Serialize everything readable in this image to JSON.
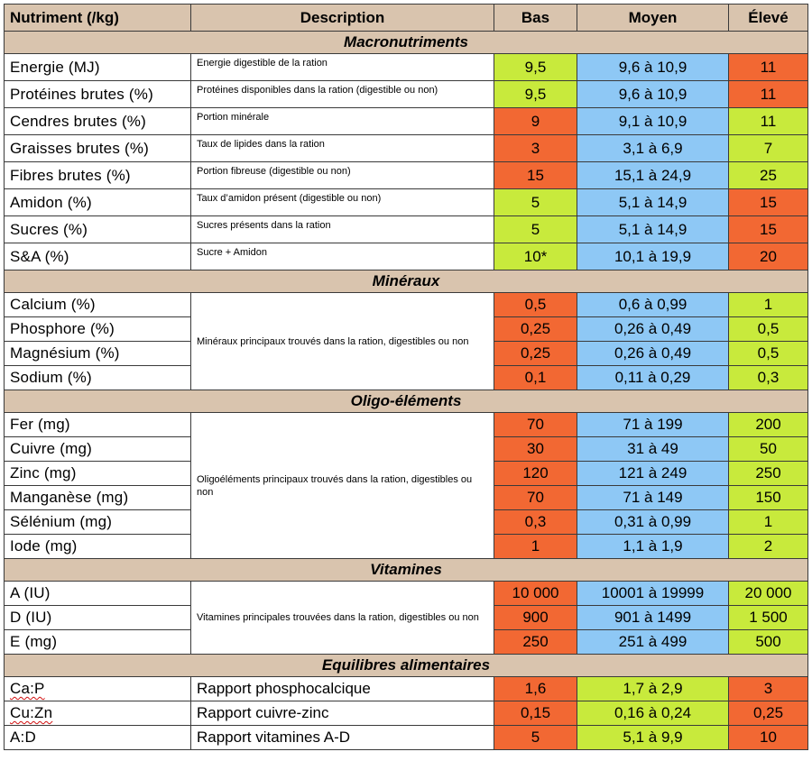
{
  "headers": [
    "Nutriment (/kg)",
    "Description",
    "Bas",
    "Moyen",
    "Élevé"
  ],
  "colors": {
    "header_bg": "#d9c4ae",
    "low": "#f26833",
    "ok": "#c8ea3c",
    "mid": "#8ec8f5"
  },
  "sections": [
    {
      "title": "Macronutriments",
      "rows": [
        {
          "name": "Energie (MJ)",
          "desc": "Energie digestible de la ration",
          "bas": "9,5",
          "moyen": "9,6 à 10,9",
          "eleve": "11",
          "bas_color": "green",
          "moyen_color": "blue",
          "eleve_color": "red"
        },
        {
          "name": "Protéines brutes (%)",
          "desc": "Protéines disponibles dans la ration (digestible ou non)",
          "bas": "9,5",
          "moyen": "9,6 à 10,9",
          "eleve": "11",
          "bas_color": "green",
          "moyen_color": "blue",
          "eleve_color": "red"
        },
        {
          "name": "Cendres brutes (%)",
          "desc": "Portion minérale",
          "bas": "9",
          "moyen": "9,1 à 10,9",
          "eleve": "11",
          "bas_color": "red",
          "moyen_color": "blue",
          "eleve_color": "green"
        },
        {
          "name": "Graisses brutes (%)",
          "desc": "Taux de lipides dans la ration",
          "bas": "3",
          "moyen": "3,1 à 6,9",
          "eleve": "7",
          "bas_color": "red",
          "moyen_color": "blue",
          "eleve_color": "green"
        },
        {
          "name": "Fibres brutes (%)",
          "desc": "Portion fibreuse (digestible ou non)",
          "bas": "15",
          "moyen": "15,1 à 24,9",
          "eleve": "25",
          "bas_color": "red",
          "moyen_color": "blue",
          "eleve_color": "green"
        },
        {
          "name": "Amidon (%)",
          "desc": "Taux d’amidon présent (digestible ou non)",
          "bas": "5",
          "moyen": "5,1 à 14,9",
          "eleve": "15",
          "bas_color": "green",
          "moyen_color": "blue",
          "eleve_color": "red"
        },
        {
          "name": "Sucres (%)",
          "desc": "Sucres présents dans la ration",
          "bas": "5",
          "moyen": "5,1 à 14,9",
          "eleve": "15",
          "bas_color": "green",
          "moyen_color": "blue",
          "eleve_color": "red"
        },
        {
          "name": "S&A (%)",
          "desc": "Sucre + Amidon",
          "bas": "10*",
          "moyen": "10,1 à 19,9",
          "eleve": "20",
          "bas_color": "green",
          "moyen_color": "blue",
          "eleve_color": "red"
        }
      ]
    },
    {
      "title": "Minéraux",
      "shared_desc": "Minéraux principaux trouvés dans la ration, digestibles ou non",
      "rows": [
        {
          "name": "Calcium (%)",
          "bas": "0,5",
          "moyen": "0,6 à 0,99",
          "eleve": "1",
          "bas_color": "red",
          "moyen_color": "blue",
          "eleve_color": "green"
        },
        {
          "name": "Phosphore (%)",
          "bas": "0,25",
          "moyen": "0,26 à 0,49",
          "eleve": "0,5",
          "bas_color": "red",
          "moyen_color": "blue",
          "eleve_color": "green"
        },
        {
          "name": "Magnésium (%)",
          "bas": "0,25",
          "moyen": "0,26 à 0,49",
          "eleve": "0,5",
          "bas_color": "red",
          "moyen_color": "blue",
          "eleve_color": "green"
        },
        {
          "name": "Sodium (%)",
          "bas": "0,1",
          "moyen": "0,11 à 0,29",
          "eleve": "0,3",
          "bas_color": "red",
          "moyen_color": "blue",
          "eleve_color": "green"
        }
      ]
    },
    {
      "title": "Oligo-éléments",
      "shared_desc": "Oligoéléments principaux trouvés dans la ration, digestibles ou non",
      "rows": [
        {
          "name": "Fer (mg)",
          "bas": "70",
          "moyen": "71 à 199",
          "eleve": "200",
          "bas_color": "red",
          "moyen_color": "blue",
          "eleve_color": "green"
        },
        {
          "name": "Cuivre (mg)",
          "bas": "30",
          "moyen": "31 à 49",
          "eleve": "50",
          "bas_color": "red",
          "moyen_color": "blue",
          "eleve_color": "green"
        },
        {
          "name": "Zinc (mg)",
          "bas": "120",
          "moyen": "121 à 249",
          "eleve": "250",
          "bas_color": "red",
          "moyen_color": "blue",
          "eleve_color": "green"
        },
        {
          "name": "Manganèse (mg)",
          "bas": "70",
          "moyen": "71 à 149",
          "eleve": "150",
          "bas_color": "red",
          "moyen_color": "blue",
          "eleve_color": "green"
        },
        {
          "name": "Sélénium (mg)",
          "bas": "0,3",
          "moyen": "0,31 à 0,99",
          "eleve": "1",
          "bas_color": "red",
          "moyen_color": "blue",
          "eleve_color": "green"
        },
        {
          "name": "Iode (mg)",
          "bas": "1",
          "moyen": "1,1 à 1,9",
          "eleve": "2",
          "bas_color": "red",
          "moyen_color": "blue",
          "eleve_color": "green"
        }
      ]
    },
    {
      "title": "Vitamines",
      "shared_desc": "Vitamines principales trouvées dans la ration, digestibles ou non",
      "rows": [
        {
          "name": "A (IU)",
          "bas": "10 000",
          "moyen": "10001 à 19999",
          "eleve": "20 000",
          "bas_color": "red",
          "moyen_color": "blue",
          "eleve_color": "green"
        },
        {
          "name": "D (IU)",
          "bas": "900",
          "moyen": "901 à 1499",
          "eleve": "1 500",
          "bas_color": "red",
          "moyen_color": "blue",
          "eleve_color": "green"
        },
        {
          "name": "E (mg)",
          "bas": "250",
          "moyen": "251 à 499",
          "eleve": "500",
          "bas_color": "red",
          "moyen_color": "blue",
          "eleve_color": "green"
        }
      ]
    },
    {
      "title": "Equilibres alimentaires",
      "rows": [
        {
          "name": "Ca:P",
          "desc": "Rapport phosphocalcique",
          "bas": "1,6",
          "moyen": "1,7 à 2,9",
          "eleve": "3",
          "bas_color": "red",
          "moyen_color": "green",
          "eleve_color": "red"
        },
        {
          "name": "Cu:Zn",
          "desc": "Rapport cuivre-zinc",
          "bas": "0,15",
          "moyen": "0,16 à 0,24",
          "eleve": "0,25",
          "bas_color": "red",
          "moyen_color": "green",
          "eleve_color": "red"
        },
        {
          "name": "A:D",
          "desc": "Rapport vitamines A-D",
          "bas": "5",
          "moyen": "5,1 à 9,9",
          "eleve": "10",
          "bas_color": "red",
          "moyen_color": "green",
          "eleve_color": "red"
        }
      ]
    }
  ]
}
